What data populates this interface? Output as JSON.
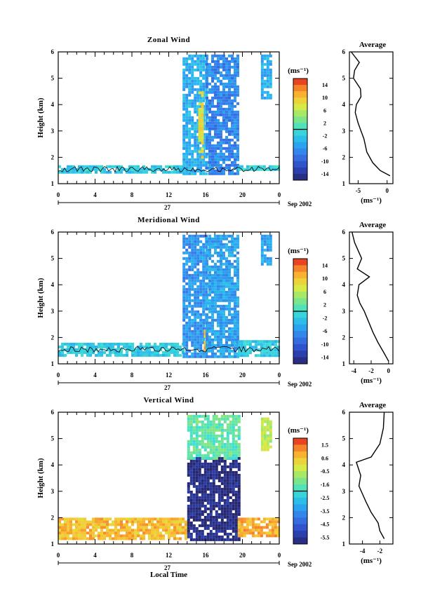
{
  "panels": [
    {
      "title": "Zonal Wind",
      "ylabel": "Height (km)",
      "x_ticks": [
        "0",
        "4",
        "8",
        "12",
        "16",
        "20",
        "0"
      ],
      "y_ticks": [
        "1",
        "2",
        "3",
        "4",
        "5",
        "6"
      ],
      "day_label": "27",
      "month_label": "Sep 2002",
      "colorbar": {
        "unit": "(ms⁻¹)",
        "ticks": [
          "14",
          "10",
          "6",
          "2",
          "-2",
          "-6",
          "-10",
          "-14"
        ],
        "range": [
          -16,
          16
        ]
      },
      "avg": {
        "title": "Average",
        "xlabel": "(ms⁻¹)",
        "x_ticks": [
          "-5",
          "0"
        ],
        "y_ticks": [
          "1",
          "2",
          "3",
          "4",
          "5",
          "6"
        ]
      }
    },
    {
      "title": "Meridional Wind",
      "ylabel": "Height (km)",
      "x_ticks": [
        "0",
        "4",
        "8",
        "12",
        "16",
        "20",
        "0"
      ],
      "y_ticks": [
        "1",
        "2",
        "3",
        "4",
        "5",
        "6"
      ],
      "day_label": "27",
      "month_label": "Sep 2002",
      "colorbar": {
        "unit": "(ms⁻¹)",
        "ticks": [
          "14",
          "10",
          "6",
          "2",
          "-2",
          "-6",
          "-10",
          "-14"
        ],
        "range": [
          -16,
          16
        ]
      },
      "avg": {
        "title": "Average",
        "xlabel": "(ms⁻¹)",
        "x_ticks": [
          "-4",
          "-2",
          "0"
        ],
        "y_ticks": [
          "1",
          "2",
          "3",
          "4",
          "5",
          "6"
        ]
      }
    },
    {
      "title": "Vertical Wind",
      "ylabel": "Height (km)",
      "xlabel": "Local Time",
      "x_ticks": [
        "0",
        "4",
        "8",
        "12",
        "16",
        "20",
        "0"
      ],
      "y_ticks": [
        "1",
        "2",
        "3",
        "4",
        "5",
        "6"
      ],
      "day_label": "27",
      "month_label": "Sep 2002",
      "colorbar": {
        "unit": "(ms⁻¹)",
        "ticks": [
          "1.5",
          "0.6",
          "-0.5",
          "-1.6",
          "-2.5",
          "-3.5",
          "-4.5",
          "-5.5"
        ],
        "range": [
          -6,
          2
        ]
      },
      "avg": {
        "title": "Average",
        "xlabel": "(ms⁻¹)",
        "x_ticks": [
          "-4",
          "-2"
        ],
        "y_ticks": [
          "1",
          "2",
          "3",
          "4",
          "5",
          "6"
        ]
      }
    }
  ],
  "chart_data": [
    {
      "type": "heatmap",
      "title": "Zonal Wind",
      "xlabel": "",
      "ylabel": "Height (km)",
      "xlim": [
        0,
        24
      ],
      "ylim": [
        1,
        6
      ],
      "x_unit": "hour (local time)",
      "value_unit": "ms^-1",
      "value_range": [
        -16,
        16
      ],
      "regions": [
        {
          "x": [
            0,
            13.5
          ],
          "y": [
            1.45,
            1.7
          ],
          "value": -2
        },
        {
          "x": [
            13.5,
            16
          ],
          "y": [
            1.4,
            5.9
          ],
          "value": -4
        },
        {
          "x": [
            15.2,
            15.8
          ],
          "y": [
            2.0,
            4.5
          ],
          "value": 8
        },
        {
          "x": [
            16,
            19.5
          ],
          "y": [
            1.4,
            5.9
          ],
          "value": -7
        },
        {
          "x": [
            19.5,
            24
          ],
          "y": [
            1.5,
            1.7
          ],
          "value": -1
        },
        {
          "x": [
            22,
            23
          ],
          "y": [
            4.2,
            5.9
          ],
          "value": -4
        }
      ],
      "contour_zero_line": true,
      "grid": false
    },
    {
      "type": "line",
      "title": "Average",
      "xlabel": "(ms^-1)",
      "ylabel": "",
      "xlim": [
        -6.5,
        1
      ],
      "ylim": [
        1,
        6
      ],
      "series": [
        {
          "x": [
            0.5,
            -1.2,
            -2.5,
            -3.5,
            -4,
            -4.5,
            -5,
            -5.5,
            -5.3,
            -4.5,
            -4.6,
            -5.8,
            -5.6,
            -4.8,
            -5.5,
            -6.2
          ],
          "y": [
            1.3,
            1.5,
            1.8,
            2.2,
            2.7,
            3.0,
            3.3,
            3.7,
            4.0,
            4.3,
            4.6,
            5.0,
            5.3,
            5.6,
            5.8,
            6.0
          ]
        }
      ]
    },
    {
      "type": "heatmap",
      "title": "Meridional Wind",
      "xlabel": "",
      "ylabel": "Height (km)",
      "xlim": [
        0,
        24
      ],
      "ylim": [
        1,
        6
      ],
      "x_unit": "hour (local time)",
      "value_unit": "ms^-1",
      "value_range": [
        -16,
        16
      ],
      "regions": [
        {
          "x": [
            0,
            13.5
          ],
          "y": [
            1.3,
            1.8
          ],
          "value": -2
        },
        {
          "x": [
            13.5,
            16
          ],
          "y": [
            1.3,
            5.9
          ],
          "value": -6
        },
        {
          "x": [
            15.8,
            16.4
          ],
          "y": [
            1.5,
            2.3
          ],
          "value": 10
        },
        {
          "x": [
            16,
            19.5
          ],
          "y": [
            1.3,
            5.9
          ],
          "value": -5
        },
        {
          "x": [
            19.5,
            24
          ],
          "y": [
            1.3,
            1.9
          ],
          "value": -2
        },
        {
          "x": [
            22,
            23
          ],
          "y": [
            4.8,
            5.9
          ],
          "value": -5
        }
      ],
      "contour_zero_line": true,
      "grid": false
    },
    {
      "type": "line",
      "title": "Average",
      "xlabel": "(ms^-1)",
      "ylabel": "",
      "xlim": [
        -4.5,
        0.5
      ],
      "ylim": [
        1,
        6
      ],
      "series": [
        {
          "x": [
            0,
            -0.5,
            -1.2,
            -1.8,
            -2.3,
            -2.8,
            -3.3,
            -3.6,
            -3.4,
            -2.2,
            -3.6,
            -3.1,
            -3.5,
            -3.9,
            -4.2
          ],
          "y": [
            1.1,
            1.4,
            1.8,
            2.2,
            2.6,
            3.0,
            3.3,
            3.6,
            4.0,
            4.3,
            4.6,
            5.0,
            5.3,
            5.6,
            6.0
          ]
        }
      ]
    },
    {
      "type": "heatmap",
      "title": "Vertical Wind",
      "xlabel": "Local Time",
      "ylabel": "Height (km)",
      "xlim": [
        0,
        24
      ],
      "ylim": [
        1,
        6
      ],
      "x_unit": "hour (local time)",
      "value_unit": "ms^-1",
      "value_range": [
        -6,
        2
      ],
      "regions": [
        {
          "x": [
            0,
            14
          ],
          "y": [
            1.2,
            2.0
          ],
          "value": 0.6
        },
        {
          "x": [
            14,
            19.5
          ],
          "y": [
            1.2,
            4.3
          ],
          "value": -5.8
        },
        {
          "x": [
            14,
            19.5
          ],
          "y": [
            4.3,
            5.9
          ],
          "value": -1.6
        },
        {
          "x": [
            19.5,
            24
          ],
          "y": [
            1.3,
            2.0
          ],
          "value": 0.8
        },
        {
          "x": [
            22,
            23
          ],
          "y": [
            4.6,
            5.8
          ],
          "value": -0.5
        }
      ],
      "grid": false
    },
    {
      "type": "line",
      "title": "Average",
      "xlabel": "(ms^-1)",
      "ylabel": "",
      "xlim": [
        -5.5,
        -0.5
      ],
      "ylim": [
        1,
        6
      ],
      "series": [
        {
          "x": [
            -1.5,
            -2.0,
            -2.2,
            -3.0,
            -3.6,
            -4.0,
            -4.4,
            -4.2,
            -4.5,
            -4.7,
            -3.0,
            -2.0,
            -1.6,
            -1.5
          ],
          "y": [
            1.2,
            1.5,
            1.8,
            2.2,
            2.6,
            2.9,
            3.2,
            3.6,
            3.9,
            4.1,
            4.3,
            4.8,
            5.4,
            6.0
          ]
        }
      ]
    }
  ]
}
